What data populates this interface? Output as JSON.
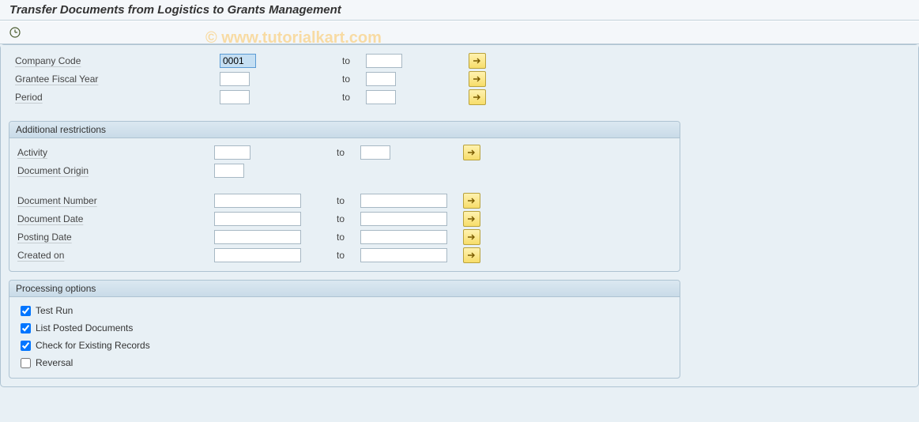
{
  "title": "Transfer Documents from Logistics  to Grants Management",
  "watermark": "© www.tutorialkart.com",
  "to_label": "to",
  "basic": {
    "rows": [
      {
        "label": "Company Code",
        "from": "0001",
        "to": "",
        "from_w": "w-small",
        "to_w": "w-small",
        "sel": true,
        "range": true
      },
      {
        "label": "Grantee Fiscal Year",
        "from": "",
        "to": "",
        "from_w": "w-tiny",
        "to_w": "w-tiny",
        "range": true
      },
      {
        "label": "Period",
        "from": "",
        "to": "",
        "from_w": "w-tiny",
        "to_w": "w-tiny",
        "range": true
      }
    ]
  },
  "additional": {
    "title": "Additional restrictions",
    "rows1": [
      {
        "label": "Activity",
        "from": "",
        "to": "",
        "from_w": "w-small",
        "to_w": "w-tiny",
        "range": true
      },
      {
        "label": "Document Origin",
        "from": "",
        "from_w": "w-tiny",
        "single": true
      }
    ],
    "rows2": [
      {
        "label": "Document Number",
        "from": "",
        "to": "",
        "from_w": "w-med",
        "to_w": "w-med",
        "range": true
      },
      {
        "label": "Document Date",
        "from": "",
        "to": "",
        "from_w": "w-med",
        "to_w": "w-med",
        "range": true
      },
      {
        "label": "Posting Date",
        "from": "",
        "to": "",
        "from_w": "w-med",
        "to_w": "w-med",
        "range": true
      },
      {
        "label": "Created on",
        "from": "",
        "to": "",
        "from_w": "w-med",
        "to_w": "w-med",
        "range": true
      }
    ]
  },
  "processing": {
    "title": "Processing options",
    "options": [
      {
        "label": "Test Run",
        "checked": true
      },
      {
        "label": "List Posted Documents",
        "checked": true
      },
      {
        "label": "Check for Existing Records",
        "checked": true
      },
      {
        "label": "Reversal",
        "checked": false
      }
    ]
  },
  "colors": {
    "background": "#e8f0f5",
    "header_bg": "#f4f7fa",
    "border": "#aec3d2",
    "button_bg_top": "#fff2b0",
    "button_bg_bottom": "#f7dd6a",
    "button_border": "#b9a23c"
  }
}
